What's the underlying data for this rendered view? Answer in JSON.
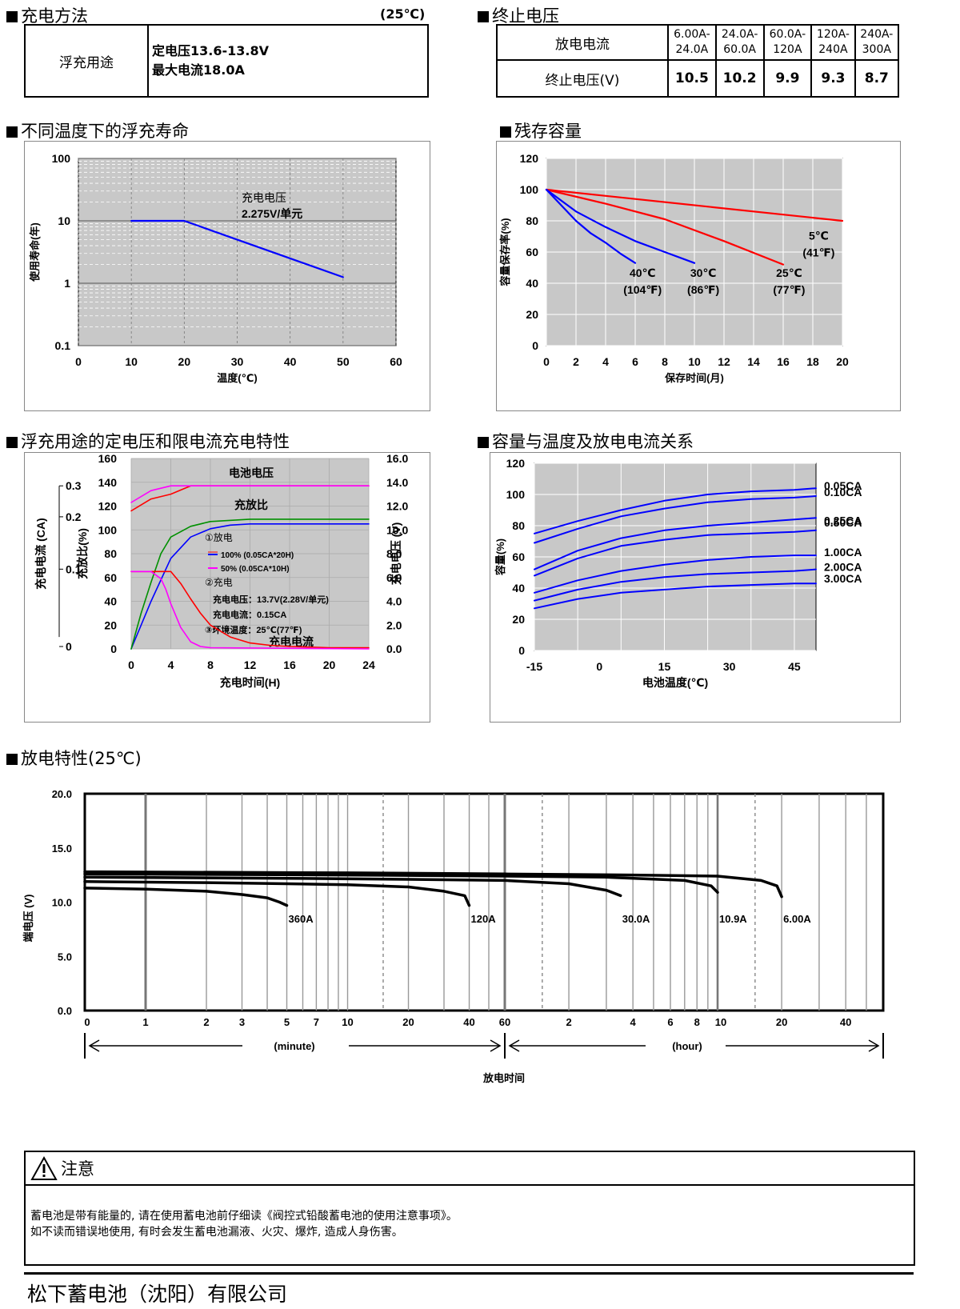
{
  "sections": {
    "charging": "充电方法",
    "charging_temp": "(25℃)",
    "endv": "终止电压",
    "float_life": "不同温度下的浮充寿命",
    "residual": "残存容量",
    "float_char": "浮充用途的定电压和限电流充电特性",
    "cap_temp": "容量与温度及放电电流关系",
    "discharge": "放电特性(25℃)"
  },
  "charging_table": {
    "label": "浮充用途",
    "line1": "定电压13.6-13.8V",
    "line2": "最大电流18.0A"
  },
  "endv_table": {
    "row1_label": "放电电流",
    "row2_label": "终止电压(V)",
    "ranges": [
      [
        "6.00A-",
        "24.0A"
      ],
      [
        "24.0A-",
        "60.0A"
      ],
      [
        "60.0A-",
        "120A"
      ],
      [
        "120A-",
        "240A"
      ],
      [
        "240A-",
        "300A"
      ]
    ],
    "voltages": [
      "10.5",
      "10.2",
      "9.9",
      "9.3",
      "8.7"
    ]
  },
  "chart_data": [
    {
      "id": "float_life",
      "type": "line",
      "xlabel": "温度(℃)",
      "ylabel": "使用寿命(年)",
      "yscale": "log",
      "xlim": [
        0,
        60
      ],
      "ylim": [
        0.1,
        100
      ],
      "xticks": [
        "0",
        "10",
        "20",
        "30",
        "40",
        "50",
        "60"
      ],
      "yticks": [
        "0.1",
        "1",
        "10",
        "100"
      ],
      "annotation": [
        "充电电压",
        "2.275V/单元"
      ],
      "series": [
        {
          "x": [
            10,
            20,
            50
          ],
          "y": [
            10,
            10,
            1.25
          ],
          "color": "#0000ff"
        }
      ]
    },
    {
      "id": "residual",
      "type": "line",
      "xlabel": "保存时间(月)",
      "ylabel": "容量保存率(%)",
      "xlim": [
        0,
        20
      ],
      "ylim": [
        0,
        120
      ],
      "xticks": [
        "0",
        "2",
        "4",
        "6",
        "8",
        "10",
        "12",
        "14",
        "16",
        "18",
        "20"
      ],
      "yticks": [
        "0",
        "20",
        "40",
        "60",
        "80",
        "100",
        "120"
      ],
      "series": [
        {
          "name": "5℃",
          "sub": "(41℉)",
          "color": "#ff0000",
          "x": [
            0,
            20
          ],
          "y": [
            100,
            80
          ]
        },
        {
          "name": "25℃",
          "sub": "(77℉)",
          "color": "#ff0000",
          "x": [
            0,
            4,
            8,
            12,
            16
          ],
          "y": [
            100,
            91,
            81,
            67,
            52
          ]
        },
        {
          "name": "30℃",
          "sub": "(86℉)",
          "color": "#0000ff",
          "x": [
            0,
            2,
            4,
            6,
            8,
            10
          ],
          "y": [
            100,
            86,
            76,
            67,
            60,
            53
          ]
        },
        {
          "name": "40℃",
          "sub": "(104℉)",
          "color": "#0000ff",
          "x": [
            0,
            1,
            2,
            3,
            4,
            5,
            6
          ],
          "y": [
            100,
            90,
            80,
            72,
            66,
            59,
            53
          ]
        }
      ]
    },
    {
      "id": "float_char",
      "type": "line",
      "xlabel": "充电时间(H)",
      "ylabel_left_outer": "充电电流 (CA)",
      "ylabel_left": "充放比(%)",
      "ylabel_right": "充电电压 (V)",
      "xlim": [
        0,
        24
      ],
      "ylim": [
        0,
        160
      ],
      "xticks": [
        "0",
        "4",
        "8",
        "12",
        "16",
        "20",
        "24"
      ],
      "yticks": [
        "0",
        "20",
        "40",
        "60",
        "80",
        "100",
        "120",
        "140",
        "160"
      ],
      "yticks_right": [
        "0.0",
        "2.0",
        "4.0",
        "6.0",
        "8.0",
        "10.0",
        "12.0",
        "14.0",
        "16.0"
      ],
      "yticks_outer": [
        "0",
        "0.1",
        "0.2",
        "0.3"
      ],
      "labels": {
        "battery_voltage": "电池电压",
        "charge_ratio": "充放比",
        "charge_current": "充电电流",
        "discharge_title": "①放电",
        "d100": "100% (0.05CA*20H)",
        "d50": "50% (0.05CA*10H)",
        "charge_title": "②充电",
        "cv": "充电电压：13.7V(2.28V/单元)",
        "cc": "充电电流：0.15CA",
        "env": "③环境温度：25℃(77℉)"
      },
      "series": [
        {
          "name": "电池电压 100%",
          "color": "#ff0000",
          "x": [
            0,
            2,
            4,
            6,
            24
          ],
          "y": [
            116,
            126,
            130,
            137,
            137
          ]
        },
        {
          "name": "电池电压 50%",
          "color": "#ff00ff",
          "x": [
            0,
            2,
            4,
            24
          ],
          "y": [
            123,
            133,
            137,
            137
          ]
        },
        {
          "name": "充放比 100%",
          "color": "#0000ff",
          "x": [
            0,
            2,
            4,
            6,
            8,
            10,
            12,
            24
          ],
          "y": [
            0,
            40,
            76,
            94,
            101,
            104,
            105,
            105
          ]
        },
        {
          "name": "充放比 50%",
          "color": "#009000",
          "x": [
            0,
            1,
            2,
            3,
            4,
            6,
            8,
            12,
            24
          ],
          "y": [
            0,
            30,
            56,
            80,
            94,
            103,
            107,
            109,
            109
          ]
        },
        {
          "name": "充电电流 100%",
          "color": "#ff0000",
          "x": [
            0,
            2,
            4,
            5,
            6,
            7,
            8,
            10,
            12,
            14,
            16,
            20,
            24
          ],
          "y": [
            65,
            65,
            65,
            55,
            42,
            30,
            20,
            10,
            5,
            3,
            2,
            1,
            1
          ]
        },
        {
          "name": "充电电流 50%",
          "color": "#ff00ff",
          "x": [
            0,
            2,
            3,
            3.5,
            4,
            5,
            6,
            7,
            8,
            24
          ],
          "y": [
            65,
            65,
            59,
            50,
            38,
            18,
            6,
            2,
            1,
            0
          ]
        }
      ]
    },
    {
      "id": "cap_temp",
      "type": "line",
      "xlabel": "电池温度(℃)",
      "ylabel": "容量(%)",
      "xlim": [
        -15,
        50
      ],
      "ylim": [
        0,
        120
      ],
      "xticks": [
        "-15",
        "0",
        "15",
        "30",
        "45"
      ],
      "yticks": [
        "0",
        "20",
        "40",
        "60",
        "80",
        "100",
        "120"
      ],
      "series": [
        {
          "name": "0.05CA",
          "color": "#0000ff",
          "x": [
            -15,
            -5,
            5,
            15,
            25,
            35,
            45,
            50
          ],
          "y": [
            75,
            83,
            90,
            96,
            100,
            102,
            103,
            104
          ]
        },
        {
          "name": "0.10CA",
          "color": "#0000ff",
          "x": [
            -15,
            -5,
            5,
            15,
            25,
            35,
            45,
            50
          ],
          "y": [
            69,
            78,
            86,
            91,
            95,
            97,
            98,
            99
          ]
        },
        {
          "name": "0.25CA",
          "color": "#0000ff",
          "x": [
            -15,
            -5,
            5,
            15,
            25,
            35,
            45,
            50
          ],
          "y": [
            52,
            64,
            72,
            77,
            80,
            82,
            84,
            85
          ]
        },
        {
          "name": "0.50CA",
          "color": "#0000ff",
          "x": [
            -15,
            -5,
            5,
            15,
            25,
            35,
            45,
            50
          ],
          "y": [
            48,
            59,
            67,
            71,
            74,
            75,
            76,
            77
          ]
        },
        {
          "name": "1.00CA",
          "color": "#0000ff",
          "x": [
            -15,
            -5,
            5,
            15,
            25,
            35,
            45,
            50
          ],
          "y": [
            37,
            45,
            51,
            55,
            58,
            60,
            61,
            61
          ]
        },
        {
          "name": "2.00CA",
          "color": "#0000ff",
          "x": [
            -15,
            -5,
            5,
            15,
            25,
            35,
            45,
            50
          ],
          "y": [
            32,
            39,
            44,
            47,
            49,
            50,
            51,
            52
          ]
        },
        {
          "name": "3.00CA",
          "color": "#0000ff",
          "x": [
            -15,
            -5,
            5,
            15,
            25,
            35,
            45,
            50
          ],
          "y": [
            27,
            33,
            37,
            39,
            41,
            42,
            43,
            43
          ]
        }
      ]
    },
    {
      "id": "discharge",
      "type": "line",
      "xlabel": "放电时间",
      "ylabel": "端电压 (V)",
      "xaxis_minute": "(minute)",
      "xaxis_hour": "(hour)",
      "ylim": [
        0,
        20
      ],
      "yticks": [
        "0.0",
        "5.0",
        "10.0",
        "15.0",
        "20.0"
      ],
      "xticks_minute": [
        "0",
        "1",
        "2",
        "3",
        "5",
        "7",
        "10",
        "20",
        "40",
        "60"
      ],
      "xticks_hour": [
        "2",
        "4",
        "6",
        "8",
        "10",
        "20",
        "40"
      ],
      "series": [
        {
          "name": "360A",
          "x_minutes": [
            0.5,
            1,
            2,
            3,
            4,
            4.6,
            5
          ],
          "y": [
            11.3,
            11.2,
            11.0,
            10.7,
            10.4,
            10.0,
            9.7
          ]
        },
        {
          "name": "120A",
          "x_minutes": [
            0.5,
            2,
            5,
            10,
            20,
            30,
            38,
            40
          ],
          "y": [
            11.9,
            11.8,
            11.7,
            11.6,
            11.4,
            11.0,
            10.6,
            9.7
          ]
        },
        {
          "name": "30.0A",
          "x_minutes": [
            0.5,
            5,
            20,
            60,
            120,
            180,
            210
          ],
          "y": [
            12.3,
            12.2,
            12.1,
            12.0,
            11.7,
            11.1,
            10.6
          ]
        },
        {
          "name": "10.9A",
          "x_minutes": [
            0.5,
            10,
            60,
            180,
            420,
            560,
            600
          ],
          "y": [
            12.6,
            12.5,
            12.4,
            12.3,
            12.0,
            11.5,
            10.9
          ]
        },
        {
          "name": "6.00A",
          "x_minutes": [
            0.5,
            10,
            60,
            240,
            600,
            960,
            1140,
            1200
          ],
          "y": [
            12.8,
            12.7,
            12.6,
            12.5,
            12.4,
            12.0,
            11.5,
            10.5
          ]
        }
      ]
    }
  ],
  "notice": {
    "title": "注意",
    "line1": "蓄电池是带有能量的, 请在使用蓄电池前仔细读《阀控式铅酸蓄电池的使用注意事项》。",
    "line2": "如不读而错误地使用, 有时会发生蓄电池漏液、火灾、爆炸, 造成人身伤害。"
  },
  "company": "松下蓄电池（沈阳）有限公司"
}
